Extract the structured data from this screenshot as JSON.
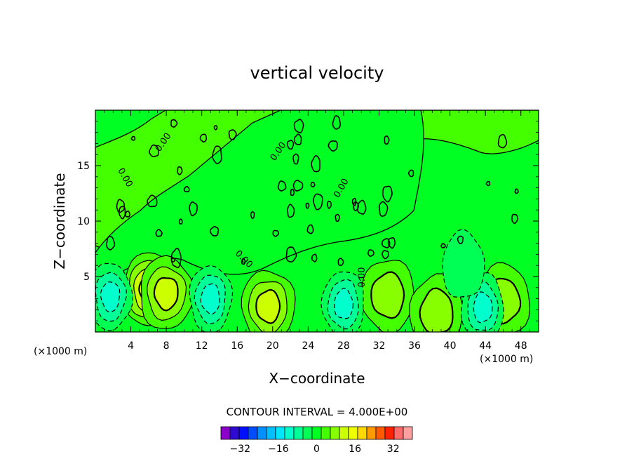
{
  "chart_data": {
    "type": "contour",
    "title": "vertical velocity",
    "xlabel": "X−coordinate",
    "ylabel": "Z−coordinate",
    "x_units": "(×1000 m)",
    "y_units": "(×1000 m)",
    "xlim": [
      0,
      50
    ],
    "ylim": [
      0,
      20
    ],
    "x_ticks": [
      4,
      8,
      12,
      16,
      20,
      24,
      28,
      32,
      36,
      40,
      44,
      48
    ],
    "x_tick_labels": [
      "4",
      "8",
      "12",
      "16",
      "20",
      "24",
      "28",
      "32",
      "36",
      "40",
      "44",
      "48"
    ],
    "y_ticks": [
      5,
      10,
      15
    ],
    "y_tick_labels": [
      "5",
      "10",
      "15"
    ],
    "contour_interval_text": "CONTOUR INTERVAL = 4.000E+00",
    "contour_interval": 4,
    "contour_labels": [
      "0.00"
    ],
    "colorbar": {
      "levels": [
        -40,
        -36,
        -32,
        -28,
        -24,
        -20,
        -16,
        -12,
        -8,
        -4,
        0,
        4,
        8,
        12,
        16,
        20,
        24,
        28,
        32,
        36,
        40
      ],
      "tick_values": [
        -32,
        -16,
        0,
        16,
        32
      ],
      "tick_labels": [
        "−32",
        "−16",
        "0",
        "16",
        "32"
      ],
      "colors": [
        "#8a00c8",
        "#2e0ad2",
        "#0010ff",
        "#004cff",
        "#0090ff",
        "#00bfff",
        "#00e6ff",
        "#00ffcc",
        "#00ff99",
        "#00ff55",
        "#00ff22",
        "#44ff00",
        "#88ff00",
        "#ccff00",
        "#f0ff00",
        "#ffd800",
        "#ff9a00",
        "#ff5a00",
        "#ff2200",
        "#ff6a6a",
        "#ffa0a0"
      ]
    },
    "background_color": "#00ff22",
    "features": [
      {
        "type": "positive",
        "x": 6.0,
        "z": 3.8,
        "peak": 14
      },
      {
        "type": "positive",
        "x": 8.0,
        "z": 3.5,
        "peak": 12
      },
      {
        "type": "positive",
        "x": 19.5,
        "z": 2.3,
        "peak": 10
      },
      {
        "type": "positive",
        "x": 33.0,
        "z": 3.3,
        "peak": 6
      },
      {
        "type": "positive",
        "x": 38.5,
        "z": 1.8,
        "peak": 6
      },
      {
        "type": "positive",
        "x": 46.0,
        "z": 2.8,
        "peak": 6
      },
      {
        "type": "negative",
        "x": 1.7,
        "z": 3.2,
        "peak": -10
      },
      {
        "type": "negative",
        "x": 13.0,
        "z": 3.0,
        "peak": -12
      },
      {
        "type": "negative",
        "x": 28.0,
        "z": 2.5,
        "peak": -12
      },
      {
        "type": "negative",
        "x": 43.7,
        "z": 2.2,
        "peak": -12
      },
      {
        "type": "negative",
        "x": 41.5,
        "z": 6.0,
        "peak": -4
      }
    ]
  }
}
